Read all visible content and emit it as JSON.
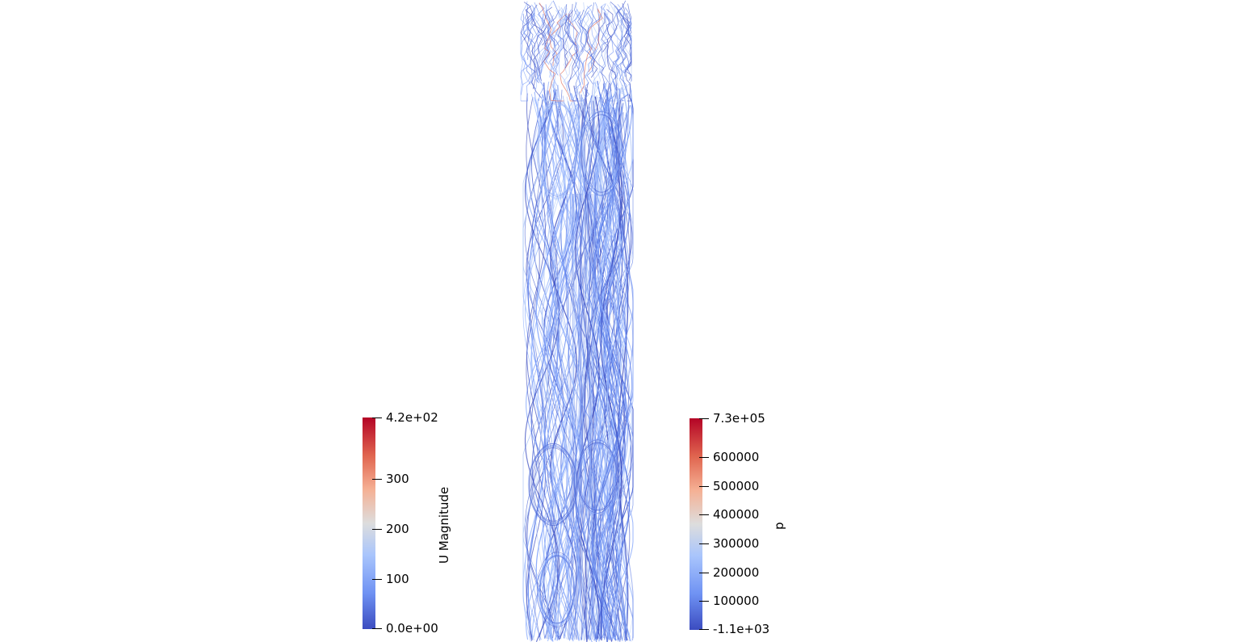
{
  "scene": {
    "background": "#ffffff",
    "colormap": [
      "#3b4cc0",
      "#6f92f3",
      "#a9c5fc",
      "#dddddd",
      "#f5b094",
      "#e0654f",
      "#b40426"
    ]
  },
  "colorbars": {
    "u": {
      "title": "U Magnitude",
      "min_label": "0.0e+00",
      "max_label": "4.2e+02",
      "ticks": [
        "100",
        "200",
        "300"
      ]
    },
    "p": {
      "title": "p",
      "min_label": "-1.1e+03",
      "max_label": "7.3e+05",
      "ticks": [
        "100000",
        "200000",
        "300000",
        "400000",
        "500000",
        "600000"
      ]
    }
  }
}
